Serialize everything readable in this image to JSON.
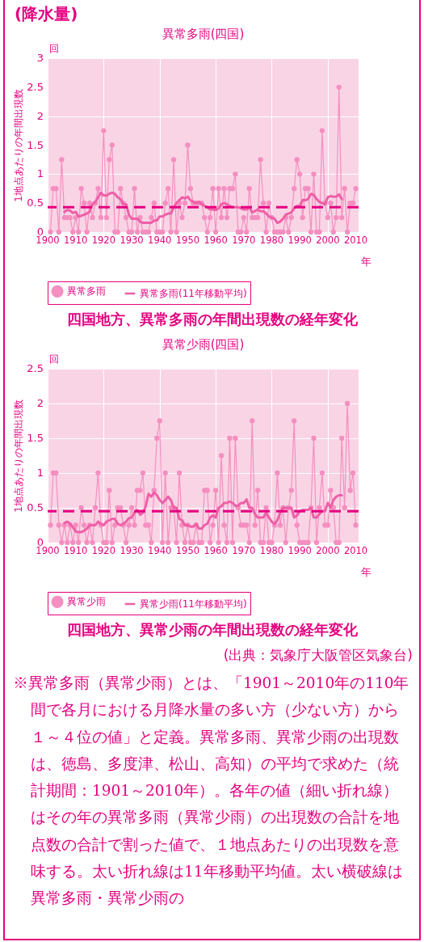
{
  "chart_data": [
    {
      "type": "line",
      "subtitle": "(降水量)",
      "title": "異常多雨(四国)",
      "ylabel": "1地点あたりの年間出現数",
      "xlabel": "年",
      "x": [
        1901,
        1902,
        1903,
        1904,
        1905,
        1906,
        1907,
        1908,
        1909,
        1910,
        1911,
        1912,
        1913,
        1914,
        1915,
        1916,
        1917,
        1918,
        1919,
        1920,
        1921,
        1922,
        1923,
        1924,
        1925,
        1926,
        1927,
        1928,
        1929,
        1930,
        1931,
        1932,
        1933,
        1934,
        1935,
        1936,
        1937,
        1938,
        1939,
        1940,
        1941,
        1942,
        1943,
        1944,
        1945,
        1946,
        1947,
        1948,
        1949,
        1950,
        1951,
        1952,
        1953,
        1954,
        1955,
        1956,
        1957,
        1958,
        1959,
        1960,
        1961,
        1962,
        1963,
        1964,
        1965,
        1966,
        1967,
        1968,
        1969,
        1970,
        1971,
        1972,
        1973,
        1974,
        1975,
        1976,
        1977,
        1978,
        1979,
        1980,
        1981,
        1982,
        1983,
        1984,
        1985,
        1986,
        1987,
        1988,
        1989,
        1990,
        1991,
        1992,
        1993,
        1994,
        1995,
        1996,
        1997,
        1998,
        1999,
        2000,
        2001,
        2002,
        2003,
        2004,
        2005,
        2006,
        2007,
        2008,
        2009,
        2010
      ],
      "xlim": [
        1900,
        2011
      ],
      "xticks": [
        1900,
        1910,
        1920,
        1930,
        1940,
        1950,
        1960,
        1970,
        1980,
        1990,
        2000,
        2010
      ],
      "ylim": [
        0,
        3
      ],
      "yticks": [
        0,
        0.5,
        1,
        1.5,
        2,
        2.5,
        3
      ],
      "grid": true,
      "legend": "bottom",
      "marker": "circle",
      "series": [
        {
          "name": "異常多雨",
          "color": "#f48fc0",
          "values": [
            0,
            0.75,
            0.75,
            0,
            1.25,
            0.25,
            0.25,
            0.25,
            0,
            0.25,
            0,
            0.75,
            0.5,
            0,
            0.5,
            0.25,
            0.5,
            0.75,
            0.25,
            1.75,
            0.25,
            1.25,
            1.5,
            0,
            0,
            0.75,
            0.5,
            0.25,
            0,
            0,
            0.75,
            0,
            0.25,
            0,
            0,
            0,
            0.25,
            0.5,
            0,
            0,
            0,
            0.5,
            0.75,
            0,
            1.25,
            0,
            0.5,
            0.25,
            0.5,
            1.5,
            0.75,
            0.5,
            0.5,
            0.5,
            0.5,
            0.25,
            0,
            0.25,
            0.75,
            0,
            0.75,
            0.25,
            0.75,
            0.25,
            0.75,
            0.75,
            1,
            0,
            0,
            0.25,
            0,
            0.75,
            0.25,
            0.25,
            0.25,
            1.25,
            0.5,
            0,
            0.5,
            0.25,
            0,
            0,
            0,
            0,
            0.25,
            0,
            0.25,
            0.75,
            1.25,
            1,
            0.25,
            0.75,
            0.75,
            0,
            1,
            0,
            0,
            1.75,
            0.5,
            0.25,
            0.5,
            0,
            0.25,
            2.5,
            0.25,
            0.75,
            0,
            0.5,
            0.5,
            0.75
          ]
        },
        {
          "name": "異常多雨(11年移動平均)",
          "color": "#ee5fa7",
          "marker": "none",
          "x": [
            1906,
            1907,
            1908,
            1909,
            1910,
            1911,
            1912,
            1913,
            1914,
            1915,
            1916,
            1917,
            1918,
            1919,
            1920,
            1921,
            1922,
            1923,
            1924,
            1925,
            1926,
            1927,
            1928,
            1929,
            1930,
            1931,
            1932,
            1933,
            1934,
            1935,
            1936,
            1937,
            1938,
            1939,
            1940,
            1941,
            1942,
            1943,
            1944,
            1945,
            1946,
            1947,
            1948,
            1949,
            1950,
            1951,
            1952,
            1953,
            1954,
            1955,
            1956,
            1957,
            1958,
            1959,
            1960,
            1961,
            1962,
            1963,
            1964,
            1965,
            1966,
            1967,
            1968,
            1969,
            1970,
            1971,
            1972,
            1973,
            1974,
            1975,
            1976,
            1977,
            1978,
            1979,
            1980,
            1981,
            1982,
            1983,
            1984,
            1985,
            1986,
            1987,
            1988,
            1989,
            1990,
            1991,
            1992,
            1993,
            1994,
            1995,
            1996,
            1997,
            1998,
            1999,
            2000,
            2001,
            2002,
            2003,
            2004,
            2005
          ],
          "values": [
            0.35,
            0.38,
            0.37,
            0.33,
            0.35,
            0.27,
            0.28,
            0.3,
            0.32,
            0.35,
            0.48,
            0.52,
            0.6,
            0.68,
            0.63,
            0.63,
            0.66,
            0.68,
            0.66,
            0.6,
            0.57,
            0.48,
            0.48,
            0.3,
            0.23,
            0.23,
            0.23,
            0.18,
            0.16,
            0.16,
            0.16,
            0.16,
            0.2,
            0.2,
            0.27,
            0.27,
            0.3,
            0.32,
            0.32,
            0.43,
            0.5,
            0.55,
            0.6,
            0.58,
            0.61,
            0.55,
            0.52,
            0.5,
            0.52,
            0.48,
            0.45,
            0.43,
            0.39,
            0.39,
            0.38,
            0.41,
            0.48,
            0.5,
            0.48,
            0.45,
            0.43,
            0.43,
            0.43,
            0.41,
            0.39,
            0.39,
            0.43,
            0.34,
            0.36,
            0.39,
            0.36,
            0.36,
            0.32,
            0.27,
            0.25,
            0.23,
            0.16,
            0.18,
            0.23,
            0.3,
            0.32,
            0.34,
            0.41,
            0.45,
            0.45,
            0.55,
            0.55,
            0.57,
            0.66,
            0.64,
            0.57,
            0.52,
            0.5,
            0.48,
            0.6,
            0.62,
            0.61,
            0.61,
            0.65,
            0.57
          ]
        }
      ],
      "ref_lines": [
        {
          "axis": "y",
          "value": 0.43,
          "color": "#e4007f",
          "line_style": "dashed"
        }
      ],
      "annotations": [
        "回",
        "四国地方、異常多雨の年間出現数の経年変化"
      ]
    },
    {
      "type": "line",
      "title": "異常少雨(四国)",
      "ylabel": "1地点あたりの年間出現数",
      "xlabel": "年",
      "x": [
        1901,
        1902,
        1903,
        1904,
        1905,
        1906,
        1907,
        1908,
        1909,
        1910,
        1911,
        1912,
        1913,
        1914,
        1915,
        1916,
        1917,
        1918,
        1919,
        1920,
        1921,
        1922,
        1923,
        1924,
        1925,
        1926,
        1927,
        1928,
        1929,
        1930,
        1931,
        1932,
        1933,
        1934,
        1935,
        1936,
        1937,
        1938,
        1939,
        1940,
        1941,
        1942,
        1943,
        1944,
        1945,
        1946,
        1947,
        1948,
        1949,
        1950,
        1951,
        1952,
        1953,
        1954,
        1955,
        1956,
        1957,
        1958,
        1959,
        1960,
        1961,
        1962,
        1963,
        1964,
        1965,
        1966,
        1967,
        1968,
        1969,
        1970,
        1971,
        1972,
        1973,
        1974,
        1975,
        1976,
        1977,
        1978,
        1979,
        1980,
        1981,
        1982,
        1983,
        1984,
        1985,
        1986,
        1987,
        1988,
        1989,
        1990,
        1991,
        1992,
        1993,
        1994,
        1995,
        1996,
        1997,
        1998,
        1999,
        2000,
        2001,
        2002,
        2003,
        2004,
        2005,
        2006,
        2007,
        2008,
        2009,
        2010
      ],
      "xlim": [
        1900,
        2011
      ],
      "xticks": [
        1900,
        1910,
        1920,
        1930,
        1940,
        1950,
        1960,
        1970,
        1980,
        1990,
        2000,
        2010
      ],
      "ylim": [
        0,
        2.5
      ],
      "yticks": [
        0,
        0.5,
        1,
        1.5,
        2,
        2.5
      ],
      "grid": true,
      "legend": "bottom",
      "marker": "circle",
      "series": [
        {
          "name": "異常少雨",
          "color": "#f48fc0",
          "values": [
            0.25,
            1,
            1,
            0.25,
            0,
            0.25,
            0,
            0.25,
            0,
            0.25,
            0,
            0.5,
            0.25,
            0,
            0.25,
            0,
            0.5,
            1,
            0.25,
            0,
            0,
            0.75,
            0,
            0.25,
            0.5,
            0.5,
            0.25,
            0,
            0.25,
            0.5,
            0.25,
            0.75,
            0.75,
            1,
            0.25,
            0.25,
            0,
            0.75,
            1.5,
            1.75,
            0,
            1,
            0,
            0.5,
            0.5,
            0,
            1,
            0.25,
            0,
            0.25,
            0,
            0,
            0.25,
            0,
            0,
            0.75,
            0.75,
            0,
            0.25,
            0.75,
            0,
            1.25,
            0.25,
            0,
            1.5,
            0,
            1.5,
            0.5,
            0.25,
            0.25,
            0.25,
            0,
            1.75,
            0.25,
            0.75,
            0,
            0,
            0.5,
            0,
            0,
            0.25,
            1,
            0.25,
            0.5,
            0,
            0.5,
            0.75,
            1.75,
            0.25,
            0,
            0,
            0,
            0,
            0.5,
            1.5,
            0,
            0.5,
            1,
            0.25,
            0.25,
            0.75,
            0.5,
            0,
            0,
            1.5,
            0.5,
            2,
            0.75,
            1,
            0.25
          ]
        },
        {
          "name": "異常少雨(11年移動平均)",
          "color": "#ee5fa7",
          "marker": "none",
          "x": [
            1906,
            1907,
            1908,
            1909,
            1910,
            1911,
            1912,
            1913,
            1914,
            1915,
            1916,
            1917,
            1918,
            1919,
            1920,
            1921,
            1922,
            1923,
            1924,
            1925,
            1926,
            1927,
            1928,
            1929,
            1930,
            1931,
            1932,
            1933,
            1934,
            1935,
            1936,
            1937,
            1938,
            1939,
            1940,
            1941,
            1942,
            1943,
            1944,
            1945,
            1946,
            1947,
            1948,
            1949,
            1950,
            1951,
            1952,
            1953,
            1954,
            1955,
            1956,
            1957,
            1958,
            1959,
            1960,
            1961,
            1962,
            1963,
            1964,
            1965,
            1966,
            1967,
            1968,
            1969,
            1970,
            1971,
            1972,
            1973,
            1974,
            1975,
            1976,
            1977,
            1978,
            1979,
            1980,
            1981,
            1982,
            1983,
            1984,
            1985,
            1986,
            1987,
            1988,
            1989,
            1990,
            1991,
            1992,
            1993,
            1994,
            1995,
            1996,
            1997,
            1998,
            1999,
            2000,
            2001,
            2002,
            2003,
            2004,
            2005
          ],
          "values": [
            0.28,
            0.3,
            0.27,
            0.22,
            0.16,
            0.15,
            0.15,
            0.17,
            0.2,
            0.25,
            0.25,
            0.25,
            0.3,
            0.27,
            0.25,
            0.3,
            0.32,
            0.34,
            0.34,
            0.27,
            0.25,
            0.27,
            0.3,
            0.35,
            0.36,
            0.43,
            0.47,
            0.4,
            0.43,
            0.52,
            0.7,
            0.66,
            0.72,
            0.68,
            0.61,
            0.57,
            0.61,
            0.66,
            0.61,
            0.5,
            0.5,
            0.34,
            0.32,
            0.25,
            0.25,
            0.23,
            0.23,
            0.27,
            0.2,
            0.2,
            0.25,
            0.27,
            0.36,
            0.39,
            0.36,
            0.5,
            0.52,
            0.57,
            0.57,
            0.59,
            0.57,
            0.53,
            0.53,
            0.57,
            0.57,
            0.62,
            0.5,
            0.5,
            0.41,
            0.36,
            0.36,
            0.36,
            0.43,
            0.36,
            0.3,
            0.27,
            0.32,
            0.43,
            0.5,
            0.5,
            0.5,
            0.5,
            0.36,
            0.39,
            0.45,
            0.47,
            0.47,
            0.47,
            0.5,
            0.36,
            0.36,
            0.41,
            0.45,
            0.45,
            0.57,
            0.5,
            0.61,
            0.66,
            0.68,
            0.68
          ]
        }
      ],
      "ref_lines": [
        {
          "axis": "y",
          "value": 0.45,
          "color": "#e4007f",
          "line_style": "dashed"
        }
      ],
      "annotations": [
        "回",
        "四国地方、異常少雨の年間出現数の経年変化",
        "(出典：気象庁大阪管区気象台)",
        "※異常多雨（異常少雨）とは、「1901～2010年の110年間で各月における月降水量の多い方（少ない方）から１～４位の値」と定義。異常多雨、異常少雨の出現数は、徳島、多度津、松山、高知）の平均で求めた（統計期間：1901～2010年）。各年の値（細い折れ線）はその年の異常多雨（異常少雨）の出現数の合計を地点数の合計で割った値で、１地点あたりの出現数を意味する。太い折れ線は11年移動平均値。太い横破線は異常多雨・異常少雨の"
      ]
    }
  ]
}
